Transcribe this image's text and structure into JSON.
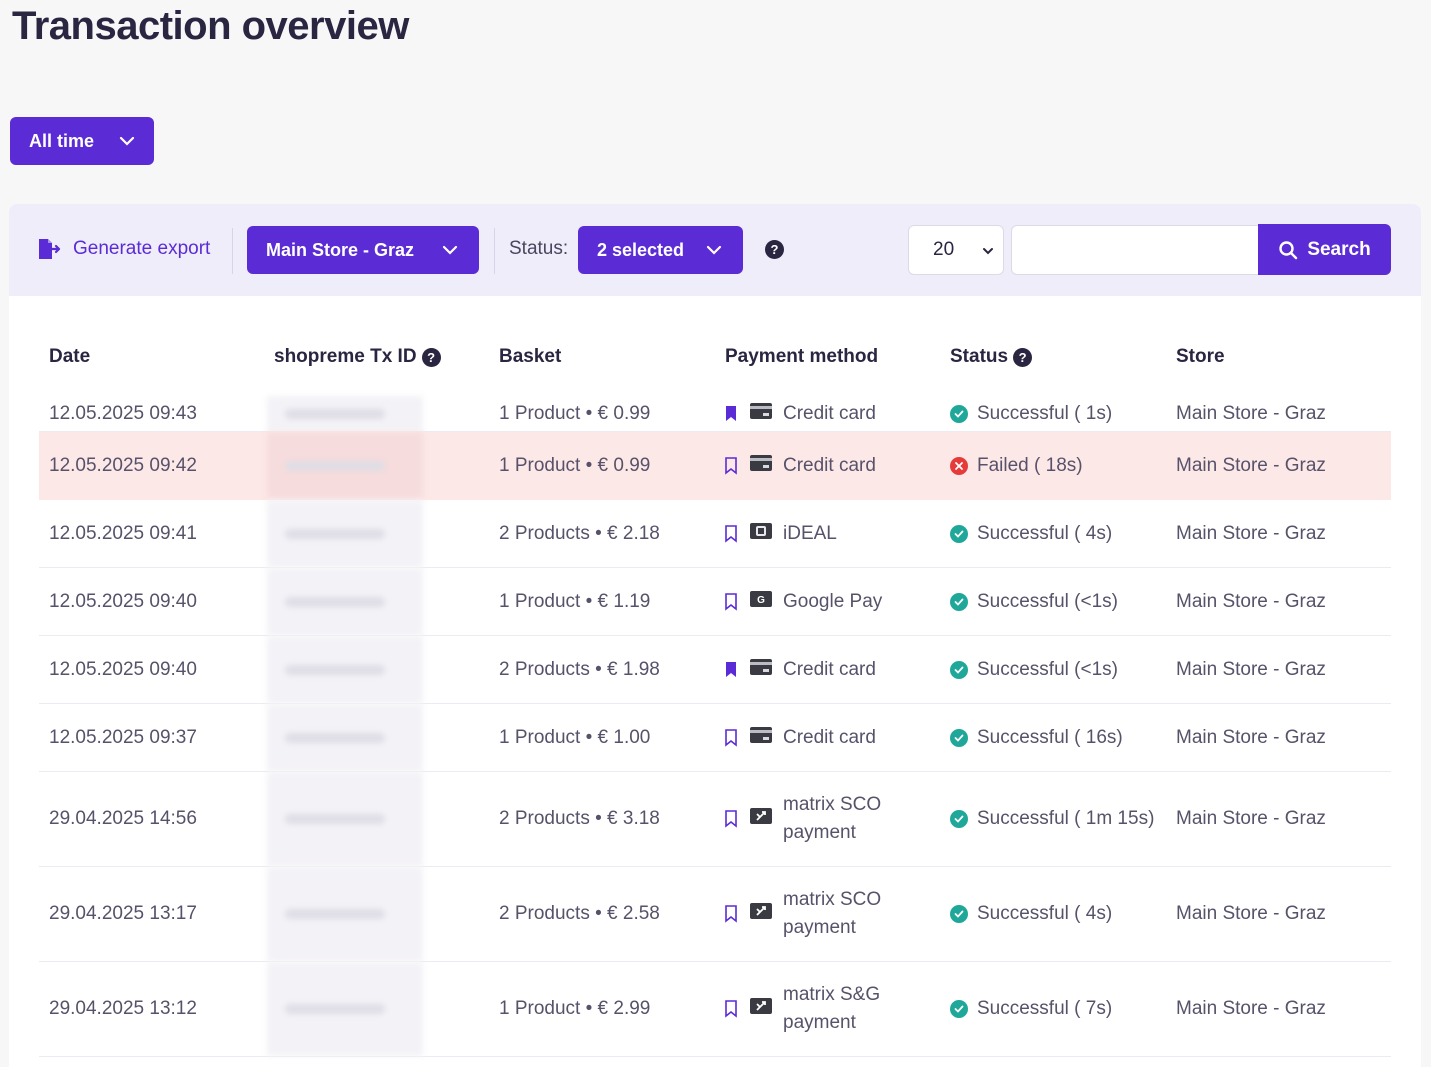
{
  "page": {
    "title": "Transaction overview"
  },
  "filters": {
    "time_range": "All time"
  },
  "toolbar": {
    "export_label": "Generate export",
    "store_select": "Main Store - Graz",
    "status_label": "Status:",
    "status_select": "2 selected",
    "page_size": "20",
    "search_placeholder": "",
    "search_label": "Search"
  },
  "colors": {
    "accent": "#5b2bd6",
    "success": "#1fa89a",
    "failure": "#e53b3b",
    "failed_row_bg": "#fde8e8"
  },
  "table": {
    "columns": [
      "Date",
      "shopreme Tx ID",
      "Basket",
      "Payment method",
      "Status",
      "Store"
    ],
    "rows": [
      {
        "date": "12.05.2025 09:43",
        "basket": "1 Product • € 0.99",
        "bookmarked": true,
        "method_icon": "credit-card-icon",
        "method": "Credit card",
        "method2": "",
        "status_kind": "success",
        "status": "Successful ( 1s)",
        "store": "Main Store - Graz"
      },
      {
        "date": "12.05.2025 09:42",
        "basket": "1 Product • € 0.99",
        "bookmarked": false,
        "method_icon": "credit-card-icon",
        "method": "Credit card",
        "method2": "",
        "status_kind": "failed",
        "status": "Failed ( 18s)",
        "store": "Main Store - Graz"
      },
      {
        "date": "12.05.2025 09:41",
        "basket": "2 Products • € 2.18",
        "bookmarked": false,
        "method_icon": "ideal-icon",
        "method": "iDEAL",
        "method2": "",
        "status_kind": "success",
        "status": "Successful ( 4s)",
        "store": "Main Store - Graz"
      },
      {
        "date": "12.05.2025 09:40",
        "basket": "1 Product • € 1.19",
        "bookmarked": false,
        "method_icon": "google-pay-icon",
        "method": "Google Pay",
        "method2": "",
        "status_kind": "success",
        "status": "Successful (<1s)",
        "store": "Main Store - Graz"
      },
      {
        "date": "12.05.2025 09:40",
        "basket": "2 Products • € 1.98",
        "bookmarked": true,
        "method_icon": "credit-card-icon",
        "method": "Credit card",
        "method2": "",
        "status_kind": "success",
        "status": "Successful (<1s)",
        "store": "Main Store - Graz"
      },
      {
        "date": "12.05.2025 09:37",
        "basket": "1 Product • € 1.00",
        "bookmarked": false,
        "method_icon": "credit-card-icon",
        "method": "Credit card",
        "method2": "",
        "status_kind": "success",
        "status": "Successful ( 16s)",
        "store": "Main Store - Graz"
      },
      {
        "date": "29.04.2025 14:56",
        "basket": "2 Products • € 3.18",
        "bookmarked": false,
        "method_icon": "matrix-terminal-icon",
        "method": "matrix SCO",
        "method2": "payment",
        "status_kind": "success",
        "status": "Successful ( 1m 15s)",
        "store": "Main Store - Graz"
      },
      {
        "date": "29.04.2025 13:17",
        "basket": "2 Products • € 2.58",
        "bookmarked": false,
        "method_icon": "matrix-terminal-icon",
        "method": "matrix SCO",
        "method2": "payment",
        "status_kind": "success",
        "status": "Successful ( 4s)",
        "store": "Main Store - Graz"
      },
      {
        "date": "29.04.2025 13:12",
        "basket": "1 Product • € 2.99",
        "bookmarked": false,
        "method_icon": "matrix-terminal-icon",
        "method": "matrix S&G",
        "method2": "payment",
        "status_kind": "success",
        "status": "Successful ( 7s)",
        "store": "Main Store - Graz"
      }
    ]
  }
}
